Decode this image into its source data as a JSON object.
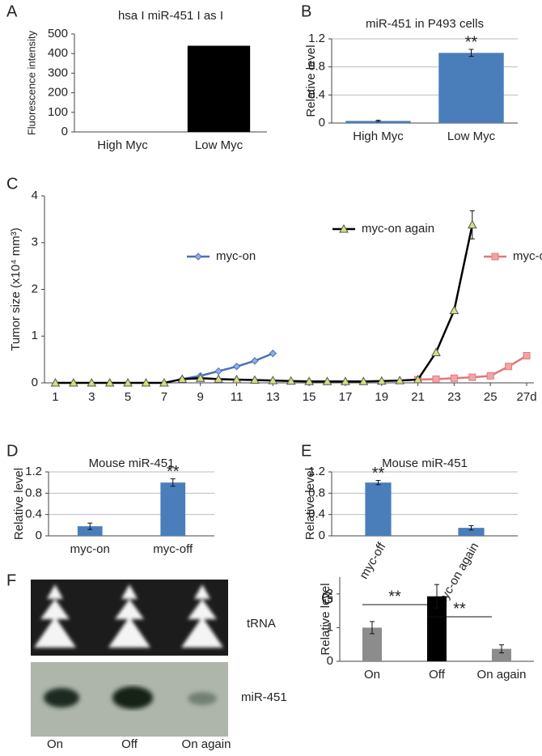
{
  "chart_data": [
    {
      "type": "bar",
      "panel": "A",
      "title": "hsa I miR-451 I as I",
      "ylabel": "Fluorescence intensity",
      "categories": [
        "High Myc",
        "Low Myc"
      ],
      "values": [
        0,
        440
      ],
      "color": "#000000",
      "ylim": [
        0,
        500
      ],
      "yticks": [
        0,
        100,
        200,
        300,
        400,
        500
      ],
      "grid": false
    },
    {
      "type": "bar",
      "panel": "B",
      "title": "miR-451 in P493 cells",
      "ylabel": "Relative level",
      "categories": [
        "High Myc",
        "Low Myc"
      ],
      "values": [
        0.03,
        1.0
      ],
      "errors": [
        0.01,
        0.05
      ],
      "value_marks": [
        null,
        "**"
      ],
      "color": "#4a7ebb",
      "ylim": [
        0,
        1.2
      ],
      "yticks": [
        0,
        0.4,
        0.8,
        1.2
      ],
      "grid": true
    },
    {
      "type": "line",
      "panel": "C",
      "ylabel": "Tumor size (x10⁴ mm³)",
      "xlim": [
        0.4,
        27.4
      ],
      "xticks": [
        1,
        3,
        5,
        7,
        9,
        11,
        13,
        15,
        17,
        19,
        21,
        23,
        25,
        {
          "value": 27,
          "label": "27d"
        }
      ],
      "ylim": [
        0,
        4
      ],
      "yticks": [
        0,
        1,
        2,
        3,
        4
      ],
      "grid": false,
      "series": [
        {
          "name": "myc-on",
          "color": "#4a6fb5",
          "marker_color": "#8fb0e6",
          "marker": "diamond",
          "x": [
            8,
            9,
            10,
            11,
            12,
            13
          ],
          "values": [
            0.08,
            0.15,
            0.25,
            0.35,
            0.47,
            0.63
          ]
        },
        {
          "name": "myc-off",
          "color": "#e07878",
          "marker_color": "#f2a5a5",
          "marker": "square",
          "x": [
            21,
            22,
            23,
            24,
            25,
            26,
            27
          ],
          "values": [
            0.07,
            0.08,
            0.1,
            0.12,
            0.15,
            0.35,
            0.58
          ],
          "errors": [
            null,
            null,
            null,
            null,
            null,
            null,
            0.04
          ]
        },
        {
          "name": "myc-on again",
          "color": "#000000",
          "marker_color": "#d8df7a",
          "marker": "triangle",
          "x": [
            1,
            2,
            3,
            4,
            5,
            6,
            7,
            8,
            9,
            10,
            11,
            12,
            13,
            14,
            15,
            16,
            17,
            18,
            19,
            20,
            21,
            22,
            23,
            24
          ],
          "values": [
            0,
            0,
            0,
            0,
            0,
            0,
            0,
            0.08,
            0.1,
            0.08,
            0.07,
            0.06,
            0.05,
            0.04,
            0.03,
            0.03,
            0.03,
            0.03,
            0.04,
            0.05,
            0.07,
            0.65,
            1.55,
            3.38
          ],
          "errors": [
            null,
            null,
            null,
            null,
            null,
            null,
            null,
            null,
            null,
            null,
            null,
            null,
            null,
            null,
            null,
            null,
            null,
            null,
            null,
            null,
            null,
            null,
            null,
            0.3
          ]
        }
      ]
    },
    {
      "type": "bar",
      "panel": "D",
      "title": "Mouse miR-451",
      "ylabel": "Relative level",
      "categories": [
        "myc-on",
        "myc-off"
      ],
      "values": [
        0.18,
        1.0
      ],
      "errors": [
        0.06,
        0.07
      ],
      "value_marks": [
        null,
        "**"
      ],
      "color": "#4a7ebb",
      "ylim": [
        0,
        1.2
      ],
      "yticks": [
        0,
        0.4,
        0.8,
        1.2
      ],
      "grid": true
    },
    {
      "type": "bar",
      "panel": "E",
      "title": "Mouse miR-451",
      "ylabel": "Relative level",
      "categories": [
        "myc-off",
        "myc-on again"
      ],
      "values": [
        1.0,
        0.15
      ],
      "errors": [
        0.04,
        0.04
      ],
      "value_marks": [
        "**",
        null
      ],
      "color": "#4a7ebb",
      "ylim": [
        0,
        1.2
      ],
      "yticks": [
        0,
        0.4,
        0.8,
        1.2
      ],
      "grid": true
    },
    {
      "type": "bar",
      "panel": "G",
      "ylabel": "Relative level",
      "categories": [
        "On",
        "Off",
        "On again"
      ],
      "values": [
        1.0,
        1.93,
        0.37
      ],
      "errors": [
        0.18,
        0.35,
        0.12
      ],
      "colors": [
        "#8c8c8c",
        "#000000",
        "#8c8c8c"
      ],
      "comparisons": [
        {
          "pair": [
            "On",
            "Off"
          ],
          "label": "**"
        },
        {
          "pair": [
            "Off",
            "On again"
          ],
          "label": "**"
        }
      ],
      "ylim": [
        0,
        2.5
      ],
      "yticks": [
        0,
        1,
        2
      ],
      "grid": false
    }
  ],
  "gel": {
    "panel": "F",
    "labels": [
      "tRNA",
      "miR-451"
    ],
    "lanes": [
      "On",
      "Off",
      "On again"
    ]
  }
}
